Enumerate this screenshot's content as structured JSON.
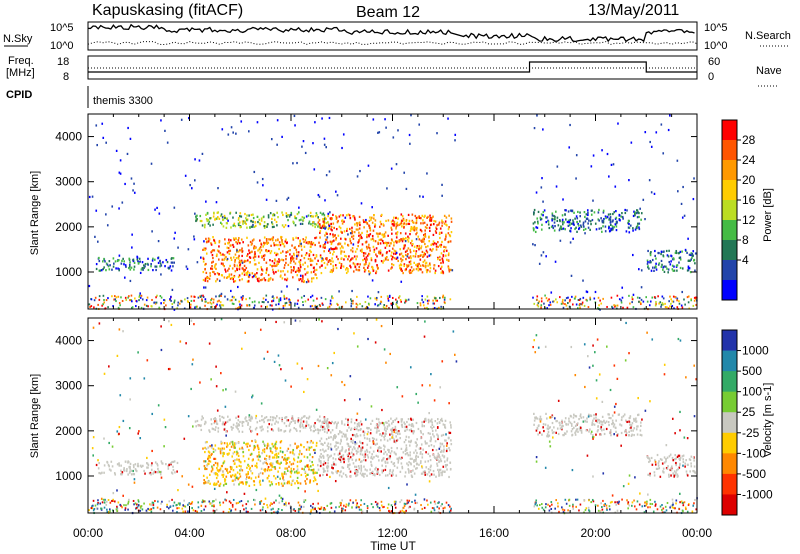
{
  "header": {
    "station": "Kapuskasing (fitACF)",
    "beam": "Beam 12",
    "date": "13/May/2011"
  },
  "top_panels": {
    "nsky_label": "N.Sky",
    "nsky_tick_high": "10^5",
    "nsky_tick_low": "10^0",
    "nsearch_label": "N.Search",
    "nsearch_tick_high": "10^5",
    "nsearch_tick_low": "10^0",
    "freq_label_1": "Freq.",
    "freq_label_2": "[MHz]",
    "freq_tick_high": "18",
    "freq_tick_low": "8",
    "nave_label": "Nave",
    "nave_tick_high": "60",
    "nave_tick_low": "0",
    "cpid_label": "CPID",
    "cpid_value": "themis 3300"
  },
  "power_colorbar": {
    "label": "Power [dB]",
    "ticks": [
      "28",
      "24",
      "20",
      "16",
      "12",
      "8",
      "4"
    ],
    "colors": [
      "#ff0000",
      "#ff5500",
      "#ff9900",
      "#ffcc00",
      "#bbdd22",
      "#44bb44",
      "#227755",
      "#2244aa",
      "#0000ff"
    ]
  },
  "velocity_colorbar": {
    "label": "Velocity [m s-1]",
    "ticks": [
      "1000",
      "500",
      "100",
      "25",
      "-25",
      "-100",
      "-500",
      "-1000"
    ],
    "colors": [
      "#2233aa",
      "#2288aa",
      "#33aa66",
      "#77cc33",
      "#c8c8c0",
      "#ffcc00",
      "#ff8800",
      "#ff3300",
      "#dd0000"
    ]
  },
  "chart_data": [
    {
      "type": "heatmap",
      "panel": "power",
      "ylabel": "Slant Range [km]",
      "x_ticks": [
        "00:00",
        "04:00",
        "08:00",
        "12:00",
        "16:00",
        "20:00",
        "00:00"
      ],
      "y_ticks": [
        "1000",
        "2000",
        "3000",
        "4000"
      ],
      "xlim_hours": [
        0,
        24
      ],
      "ylim_km": [
        180,
        4500
      ],
      "data_gap_hours": [
        14.5,
        17.5
      ],
      "scatter_regions": [
        {
          "t": [
            0.3,
            3.5
          ],
          "r": [
            1050,
            1350
          ],
          "power_db": 6
        },
        {
          "t": [
            4.2,
            9.5
          ],
          "r": [
            2000,
            2350
          ],
          "power_db": 12
        },
        {
          "t": [
            4.5,
            9.0
          ],
          "r": [
            800,
            1800
          ],
          "power_db": 18
        },
        {
          "t": [
            9.0,
            14.3
          ],
          "r": [
            1000,
            2300
          ],
          "power_db": 16
        },
        {
          "t": [
            17.5,
            21.8
          ],
          "r": [
            1900,
            2400
          ],
          "power_db": 6
        },
        {
          "t": [
            22.0,
            23.9
          ],
          "r": [
            1000,
            1500
          ],
          "power_db": 6
        }
      ]
    },
    {
      "type": "heatmap",
      "panel": "velocity",
      "ylabel": "Slant Range [km]",
      "xlabel": "Time UT",
      "x_ticks": [
        "00:00",
        "04:00",
        "08:00",
        "12:00",
        "16:00",
        "20:00",
        "00:00"
      ],
      "y_ticks": [
        "1000",
        "2000",
        "3000",
        "4000"
      ],
      "xlim_hours": [
        0,
        24
      ],
      "ylim_km": [
        180,
        4500
      ],
      "scatter_regions": [
        {
          "t": [
            0.3,
            3.5
          ],
          "r": [
            1050,
            1350
          ],
          "velocity": 0
        },
        {
          "t": [
            4.2,
            9.5
          ],
          "r": [
            2000,
            2350
          ],
          "velocity": 0
        },
        {
          "t": [
            4.5,
            9.0
          ],
          "r": [
            800,
            1800
          ],
          "velocity": -100
        },
        {
          "t": [
            9.0,
            14.3
          ],
          "r": [
            1000,
            2300
          ],
          "velocity": 0
        },
        {
          "t": [
            17.5,
            21.8
          ],
          "r": [
            1900,
            2400
          ],
          "velocity": 0
        },
        {
          "t": [
            22.0,
            23.9
          ],
          "r": [
            1000,
            1500
          ],
          "velocity": 0
        }
      ]
    }
  ]
}
